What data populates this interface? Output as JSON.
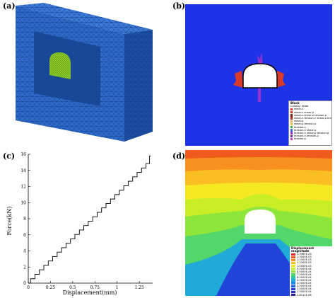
{
  "panels": {
    "a": {
      "label": "(a)"
    },
    "b": {
      "label": "(b)",
      "legend": {
        "title": "Block",
        "subtitle": "Colorby: State",
        "entries": [
          {
            "text": "shear-n",
            "color": "#d83b2a"
          },
          {
            "text": "shear-n shear-p",
            "color": "#c4341f"
          },
          {
            "text": "shear-n shear-p tension-p",
            "color": "#7a1a12"
          },
          {
            "text": "shear-n tension-n shear-p tension-p",
            "color": "#b02a1c"
          },
          {
            "text": "shear-p",
            "color": "#f3a24a"
          },
          {
            "text": "shear-p tension-p",
            "color": "#f0c23a"
          },
          {
            "text": "tension-n",
            "color": "#4aa64a"
          },
          {
            "text": "tension-n shear-p",
            "color": "#3b6bd8"
          },
          {
            "text": "tension-n shear-p tension-p",
            "color": "#9b30d0"
          },
          {
            "text": "tension-n tension-p",
            "color": "#6a2fb8"
          },
          {
            "text": "tension-p",
            "color": "#c03ad0"
          }
        ]
      }
    },
    "c": {
      "label": "(c)"
    },
    "d": {
      "label": "(d)",
      "legend": {
        "title": "Displacement magnitude",
        "entries": [
          {
            "text": "1.3965E-03",
            "color": "#e8231a"
          },
          {
            "text": "1.3500E-03",
            "color": "#f05a1c"
          },
          {
            "text": "1.2500E-03",
            "color": "#f6901e"
          },
          {
            "text": "1.1500E-03",
            "color": "#f9be22"
          },
          {
            "text": "1.0500E-03",
            "color": "#f7e824"
          },
          {
            "text": "9.5000E-04",
            "color": "#c9ee26"
          },
          {
            "text": "8.5000E-04",
            "color": "#8fe63a"
          },
          {
            "text": "7.5000E-04",
            "color": "#53d66a"
          },
          {
            "text": "6.5000E-04",
            "color": "#2cc6a6"
          },
          {
            "text": "5.5000E-04",
            "color": "#1faad8"
          },
          {
            "text": "4.5000E-04",
            "color": "#1c84e8"
          },
          {
            "text": "3.5000E-04",
            "color": "#1f5fe6"
          },
          {
            "text": "2.5000E-04",
            "color": "#2144d8"
          },
          {
            "text": "1.5000E-04",
            "color": "#2a2ec0"
          },
          {
            "text": "2.8111E-06",
            "color": "#2e1fa4"
          }
        ]
      }
    }
  },
  "chart_data": {
    "type": "line",
    "title": "",
    "xlabel": "Displacement(mm)",
    "ylabel": "Force(kN)",
    "xlim": [
      0,
      1.4
    ],
    "ylim": [
      0,
      16
    ],
    "xticks": [
      "0",
      "0.25",
      "0.5",
      "0.75",
      "1",
      "1.25"
    ],
    "xtick_values": [
      0,
      0.25,
      0.5,
      0.75,
      1.0,
      1.25
    ],
    "yticks": [
      "0",
      "2",
      "4",
      "6",
      "8",
      "10",
      "12",
      "14",
      "16"
    ],
    "ytick_values": [
      0,
      2,
      4,
      6,
      8,
      10,
      12,
      14,
      16
    ],
    "series": [
      {
        "x": [
          0,
          0.05,
          0.1,
          0.15,
          0.2,
          0.25,
          0.3,
          0.35,
          0.4,
          0.45,
          0.5,
          0.55,
          0.6,
          0.65,
          0.7,
          0.75,
          0.8,
          0.85,
          0.9,
          0.95,
          1.0,
          1.05,
          1.1,
          1.15,
          1.2,
          1.25,
          1.3,
          1.35,
          1.38
        ],
        "y": [
          0,
          0.55,
          1.1,
          1.65,
          2.2,
          2.75,
          3.3,
          3.85,
          4.4,
          4.95,
          5.5,
          6.05,
          6.6,
          7.15,
          7.7,
          8.25,
          8.8,
          9.35,
          9.9,
          10.45,
          11.0,
          11.55,
          12.1,
          12.65,
          13.2,
          13.75,
          14.3,
          14.85,
          15.8
        ]
      }
    ]
  }
}
